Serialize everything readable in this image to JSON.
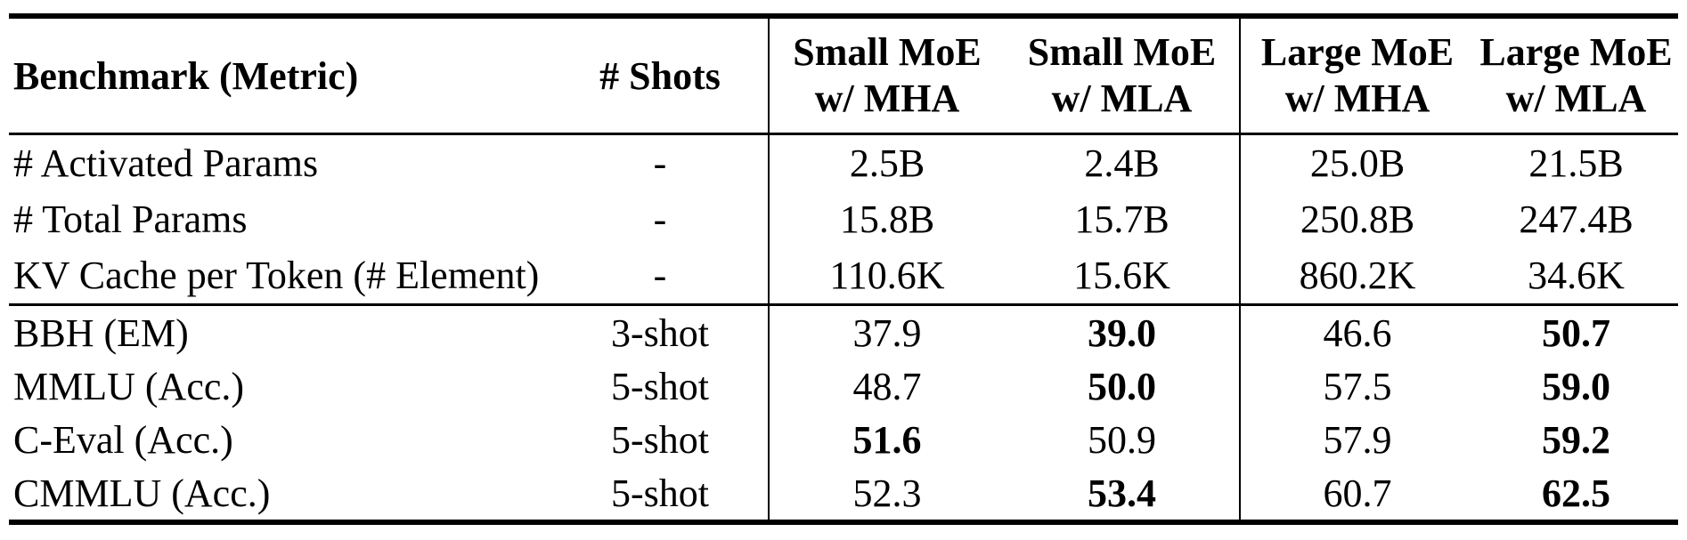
{
  "page": {
    "background": "#ffffff",
    "text_color": "#000000"
  },
  "table": {
    "header": {
      "benchmark": "Benchmark (Metric)",
      "shots": "# Shots",
      "models": [
        {
          "line1": "Small MoE",
          "line2": "w/ MHA"
        },
        {
          "line1": "Small MoE",
          "line2": "w/ MLA"
        },
        {
          "line1": "Large MoE",
          "line2": "w/ MHA"
        },
        {
          "line1": "Large MoE",
          "line2": "w/ MLA"
        }
      ]
    },
    "param_rows": [
      {
        "label": "# Activated Params",
        "shots": "-",
        "values": [
          "2.5B",
          "2.4B",
          "25.0B",
          "21.5B"
        ],
        "bold": [
          false,
          false,
          false,
          false
        ]
      },
      {
        "label": "# Total Params",
        "shots": "-",
        "values": [
          "15.8B",
          "15.7B",
          "250.8B",
          "247.4B"
        ],
        "bold": [
          false,
          false,
          false,
          false
        ]
      },
      {
        "label": "KV Cache per Token (# Element)",
        "shots": "-",
        "values": [
          "110.6K",
          "15.6K",
          "860.2K",
          "34.6K"
        ],
        "bold": [
          false,
          false,
          false,
          false
        ]
      }
    ],
    "benchmark_rows": [
      {
        "label": "BBH (EM)",
        "shots": "3-shot",
        "values": [
          "37.9",
          "39.0",
          "46.6",
          "50.7"
        ],
        "bold": [
          false,
          true,
          false,
          true
        ]
      },
      {
        "label": "MMLU (Acc.)",
        "shots": "5-shot",
        "values": [
          "48.7",
          "50.0",
          "57.5",
          "59.0"
        ],
        "bold": [
          false,
          true,
          false,
          true
        ]
      },
      {
        "label": "C-Eval (Acc.)",
        "shots": "5-shot",
        "values": [
          "51.6",
          "50.9",
          "57.9",
          "59.2"
        ],
        "bold": [
          true,
          false,
          false,
          true
        ]
      },
      {
        "label": "CMMLU (Acc.)",
        "shots": "5-shot",
        "values": [
          "52.3",
          "53.4",
          "60.7",
          "62.5"
        ],
        "bold": [
          false,
          true,
          false,
          true
        ]
      }
    ]
  }
}
